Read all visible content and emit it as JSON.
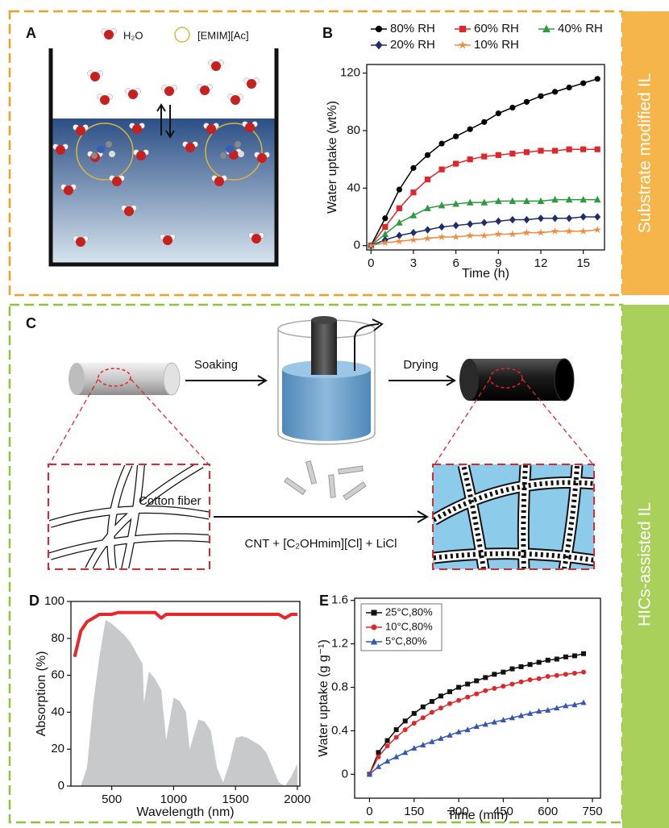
{
  "sections": [
    "Substrate modified IL",
    "HICs-assisted IL"
  ],
  "panel_labels": [
    "A",
    "B",
    "C",
    "D",
    "E"
  ],
  "panel_a": {
    "legend": [
      "H₂O",
      "[EMIM][Ac]"
    ]
  },
  "panel_c": {
    "steps": [
      "Soaking",
      "Drying"
    ],
    "fiber_label": "Cotton fiber",
    "reagents": "CNT + [C₂OHmim][Cl] + LiCl"
  },
  "chart_data": [
    {
      "type": "line",
      "x_label": "Time (h)",
      "y_label": "Water uptake (wt%)",
      "x": [
        0,
        1,
        2,
        3,
        4,
        5,
        6,
        7,
        8,
        9,
        10,
        11,
        12,
        13,
        14,
        15,
        16
      ],
      "xlim": [
        -0.3,
        16.5
      ],
      "xticks": [
        0,
        3,
        6,
        9,
        12,
        15
      ],
      "ylim": [
        -3,
        126
      ],
      "yticks": [
        0,
        40,
        80,
        120
      ],
      "series": [
        {
          "name": "80% RH",
          "color": "#000000",
          "marker": "circle",
          "values": [
            0,
            19,
            39,
            54,
            63,
            71,
            76,
            81,
            86,
            92,
            96,
            100,
            104,
            107,
            110,
            113,
            116
          ]
        },
        {
          "name": "60% RH",
          "color": "#e0262a",
          "marker": "square",
          "values": [
            0,
            13,
            26,
            37,
            46,
            53,
            57,
            60,
            62,
            63,
            64,
            65,
            66,
            66,
            67,
            67,
            67
          ]
        },
        {
          "name": "40% RH",
          "color": "#2e9a3e",
          "marker": "triangle",
          "values": [
            0,
            8,
            16,
            21,
            26,
            28,
            29,
            30,
            30,
            31,
            31,
            31,
            31,
            32,
            32,
            32,
            32
          ]
        },
        {
          "name": "20% RH",
          "color": "#1f2d6b",
          "marker": "diamond",
          "values": [
            0,
            4,
            7,
            9,
            11,
            13,
            14,
            15,
            16,
            17,
            18,
            18,
            19,
            19,
            19,
            20,
            20
          ]
        },
        {
          "name": "10% RH",
          "color": "#f08a3c",
          "marker": "star",
          "values": [
            0,
            2,
            3,
            4,
            5,
            6,
            6,
            7,
            7,
            8,
            8,
            9,
            9,
            10,
            10,
            10,
            11
          ]
        }
      ]
    },
    {
      "type": "line",
      "x_label": "Wavelength (nm)",
      "y_label": "Absorption (%)",
      "x": [
        200,
        250,
        300,
        350,
        400,
        450,
        500,
        550,
        600,
        650,
        700,
        750,
        760,
        800,
        850,
        900,
        940,
        1000,
        1050,
        1100,
        1130,
        1200,
        1250,
        1300,
        1350,
        1400,
        1450,
        1500,
        1550,
        1600,
        1650,
        1700,
        1750,
        1800,
        1850,
        1900,
        1950,
        2000
      ],
      "xlim": [
        170,
        2020
      ],
      "xticks": [
        500,
        1000,
        1500,
        2000
      ],
      "ylim": [
        0,
        100
      ],
      "yticks": [
        0,
        20,
        40,
        60,
        80,
        100
      ],
      "series": [
        {
          "color": "#c8c9cb",
          "area": true,
          "values": [
            0,
            0,
            10,
            45,
            70,
            90,
            88,
            85,
            82,
            78,
            72,
            66,
            45,
            62,
            58,
            52,
            25,
            48,
            46,
            40,
            20,
            36,
            35,
            30,
            10,
            2,
            12,
            26,
            27,
            26,
            24,
            22,
            18,
            10,
            2,
            0,
            5,
            12
          ]
        },
        {
          "color": "#e8262a",
          "line_width": 4,
          "values": [
            70,
            84,
            89,
            91,
            93,
            93,
            93,
            94,
            94,
            94,
            94,
            94,
            94,
            94,
            94,
            91,
            93,
            93,
            93,
            93,
            93,
            93,
            93,
            93,
            93,
            93,
            93,
            93,
            93,
            93,
            93,
            93,
            93,
            93,
            93,
            91,
            93,
            93
          ]
        }
      ]
    },
    {
      "type": "line",
      "x_label": "Time (min)",
      "y_label": "Water uptake (g g⁻¹)",
      "x": [
        0,
        30,
        60,
        90,
        120,
        150,
        180,
        210,
        240,
        270,
        300,
        330,
        360,
        390,
        420,
        450,
        480,
        510,
        540,
        570,
        600,
        630,
        660,
        690,
        720
      ],
      "xlim": [
        -50,
        777
      ],
      "xticks": [
        0,
        150,
        300,
        450,
        600,
        750
      ],
      "ylim": [
        -0.22,
        1.62
      ],
      "yticks": [
        0,
        0.4,
        0.8,
        1.2,
        1.6
      ],
      "series": [
        {
          "name": "25°C,80%",
          "color": "#111111",
          "marker": "square",
          "values": [
            0,
            0.2,
            0.31,
            0.41,
            0.49,
            0.56,
            0.62,
            0.67,
            0.72,
            0.76,
            0.8,
            0.83,
            0.86,
            0.89,
            0.92,
            0.94,
            0.97,
            0.99,
            1.01,
            1.03,
            1.05,
            1.06,
            1.08,
            1.09,
            1.11
          ]
        },
        {
          "name": "10°C,80%",
          "color": "#e0262a",
          "marker": "circle",
          "values": [
            0,
            0.16,
            0.26,
            0.34,
            0.41,
            0.47,
            0.52,
            0.57,
            0.61,
            0.65,
            0.68,
            0.71,
            0.74,
            0.77,
            0.79,
            0.81,
            0.83,
            0.85,
            0.87,
            0.88,
            0.9,
            0.91,
            0.92,
            0.93,
            0.94
          ]
        },
        {
          "name": "5°C,80%",
          "color": "#3457b5",
          "marker": "triangle",
          "values": [
            0,
            0.07,
            0.12,
            0.16,
            0.2,
            0.24,
            0.27,
            0.3,
            0.33,
            0.36,
            0.39,
            0.41,
            0.44,
            0.46,
            0.48,
            0.5,
            0.52,
            0.54,
            0.56,
            0.58,
            0.59,
            0.61,
            0.63,
            0.64,
            0.66
          ]
        }
      ]
    }
  ]
}
